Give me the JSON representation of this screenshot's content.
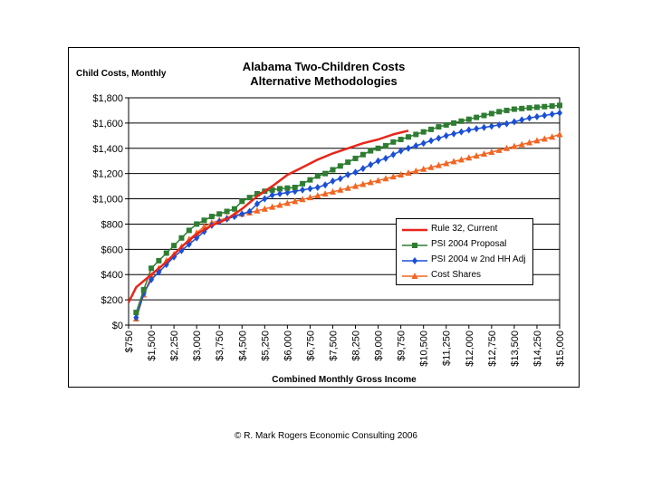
{
  "chart_data": {
    "type": "line",
    "title": [
      "Alabama Two-Children Costs",
      "Alternative Methodologies"
    ],
    "ylabel": "Child Costs, Monthly",
    "xlabel": "Combined Monthly Gross Income",
    "ylim": [
      0,
      1800
    ],
    "yticks": [
      0,
      200,
      400,
      600,
      800,
      1000,
      1200,
      1400,
      1600,
      1800
    ],
    "ytick_labels": [
      "$0",
      "$200",
      "$400",
      "$600",
      "$800",
      "$1,000",
      "$1,200",
      "$1,400",
      "$1,600",
      "$1,800"
    ],
    "xlim": [
      750,
      15000
    ],
    "xticks": [
      750,
      1500,
      2250,
      3000,
      3750,
      4500,
      5250,
      6000,
      6750,
      7500,
      8250,
      9000,
      9750,
      10500,
      11250,
      12000,
      12750,
      13500,
      14250,
      15000
    ],
    "xtick_labels": [
      "$750",
      "$1,500",
      "$2,250",
      "$3,000",
      "$3,750",
      "$4,500",
      "$5,250",
      "$6,000",
      "$6,750",
      "$7,500",
      "$8,250",
      "$9,000",
      "$9,750",
      "$10,500",
      "$11,250",
      "$12,000",
      "$12,750",
      "$13,500",
      "$14,250",
      "$15,000"
    ],
    "grid": "horizontal",
    "legend_position": "middle-right",
    "series": [
      {
        "name": "Rule 32, Current",
        "color": "#e8261a",
        "marker": "none",
        "x": [
          750,
          1000,
          1500,
          2000,
          2500,
          3000,
          3500,
          4000,
          4500,
          5000,
          5500,
          6000,
          6500,
          7000,
          7500,
          8000,
          8500,
          9000,
          9500,
          10000
        ],
        "y": [
          180,
          300,
          400,
          500,
          620,
          720,
          790,
          840,
          920,
          1020,
          1100,
          1190,
          1250,
          1310,
          1360,
          1400,
          1440,
          1470,
          1510,
          1540
        ]
      },
      {
        "name": "PSI 2004 Proposal",
        "color": "#2e7d32",
        "marker": "square",
        "x": [
          1000,
          1250,
          1500,
          1750,
          2000,
          2250,
          2500,
          2750,
          3000,
          3250,
          3500,
          3750,
          4000,
          4250,
          4500,
          4750,
          5000,
          5250,
          5500,
          5750,
          6000,
          6250,
          6500,
          6750,
          7000,
          7250,
          7500,
          7750,
          8000,
          8250,
          8500,
          8750,
          9000,
          9250,
          9500,
          9750,
          10000,
          10250,
          10500,
          10750,
          11000,
          11250,
          11500,
          11750,
          12000,
          12250,
          12500,
          12750,
          13000,
          13250,
          13500,
          13750,
          14000,
          14250,
          14500,
          14750,
          15000
        ],
        "y": [
          100,
          280,
          450,
          510,
          570,
          630,
          690,
          750,
          800,
          830,
          860,
          880,
          900,
          920,
          980,
          1010,
          1040,
          1060,
          1070,
          1080,
          1085,
          1090,
          1120,
          1150,
          1180,
          1200,
          1230,
          1260,
          1290,
          1320,
          1350,
          1380,
          1400,
          1420,
          1450,
          1470,
          1490,
          1510,
          1530,
          1550,
          1570,
          1585,
          1600,
          1615,
          1630,
          1645,
          1660,
          1675,
          1690,
          1700,
          1710,
          1715,
          1720,
          1725,
          1730,
          1735,
          1740
        ]
      },
      {
        "name": "PSI 2004 w 2nd HH Adj",
        "color": "#1a4fd6",
        "marker": "diamond",
        "x": [
          1000,
          1250,
          1500,
          1750,
          2000,
          2250,
          2500,
          2750,
          3000,
          3250,
          3500,
          3750,
          4000,
          4250,
          4500,
          4750,
          5000,
          5250,
          5500,
          5750,
          6000,
          6250,
          6500,
          6750,
          7000,
          7250,
          7500,
          7750,
          8000,
          8250,
          8500,
          8750,
          9000,
          9250,
          9500,
          9750,
          10000,
          10250,
          10500,
          10750,
          11000,
          11250,
          11500,
          11750,
          12000,
          12250,
          12500,
          12750,
          13000,
          13250,
          13500,
          13750,
          14000,
          14250,
          14500,
          14750,
          15000
        ],
        "y": [
          60,
          250,
          360,
          420,
          480,
          540,
          590,
          640,
          690,
          740,
          790,
          820,
          840,
          860,
          880,
          900,
          960,
          1000,
          1030,
          1040,
          1050,
          1060,
          1070,
          1080,
          1090,
          1110,
          1140,
          1160,
          1190,
          1210,
          1240,
          1270,
          1300,
          1320,
          1350,
          1380,
          1400,
          1420,
          1440,
          1460,
          1480,
          1500,
          1515,
          1530,
          1545,
          1555,
          1565,
          1575,
          1585,
          1595,
          1610,
          1625,
          1640,
          1650,
          1660,
          1670,
          1680
        ]
      },
      {
        "name": "Cost Shares",
        "color": "#f26522",
        "marker": "triangle",
        "x": [
          1000,
          1250,
          1500,
          1750,
          2000,
          2250,
          2500,
          2750,
          3000,
          3250,
          3500,
          3750,
          4000,
          4250,
          4500,
          4750,
          5000,
          5250,
          5500,
          5750,
          6000,
          6250,
          6500,
          6750,
          7000,
          7250,
          7500,
          7750,
          8000,
          8250,
          8500,
          8750,
          9000,
          9250,
          9500,
          9750,
          10000,
          10250,
          10500,
          10750,
          11000,
          11250,
          11500,
          11750,
          12000,
          12250,
          12500,
          12750,
          13000,
          13250,
          13500,
          13750,
          14000,
          14250,
          14500,
          14750,
          15000
        ],
        "y": [
          50,
          240,
          390,
          450,
          510,
          560,
          620,
          680,
          730,
          780,
          810,
          830,
          850,
          870,
          880,
          890,
          905,
          920,
          935,
          950,
          965,
          980,
          995,
          1010,
          1025,
          1040,
          1055,
          1070,
          1085,
          1100,
          1115,
          1130,
          1145,
          1160,
          1175,
          1190,
          1205,
          1220,
          1235,
          1250,
          1265,
          1280,
          1295,
          1310,
          1325,
          1340,
          1355,
          1370,
          1385,
          1400,
          1415,
          1430,
          1445,
          1460,
          1475,
          1490,
          1510
        ]
      }
    ]
  },
  "footer": {
    "copyright": "© R. Mark Rogers Economic Consulting 2006"
  }
}
